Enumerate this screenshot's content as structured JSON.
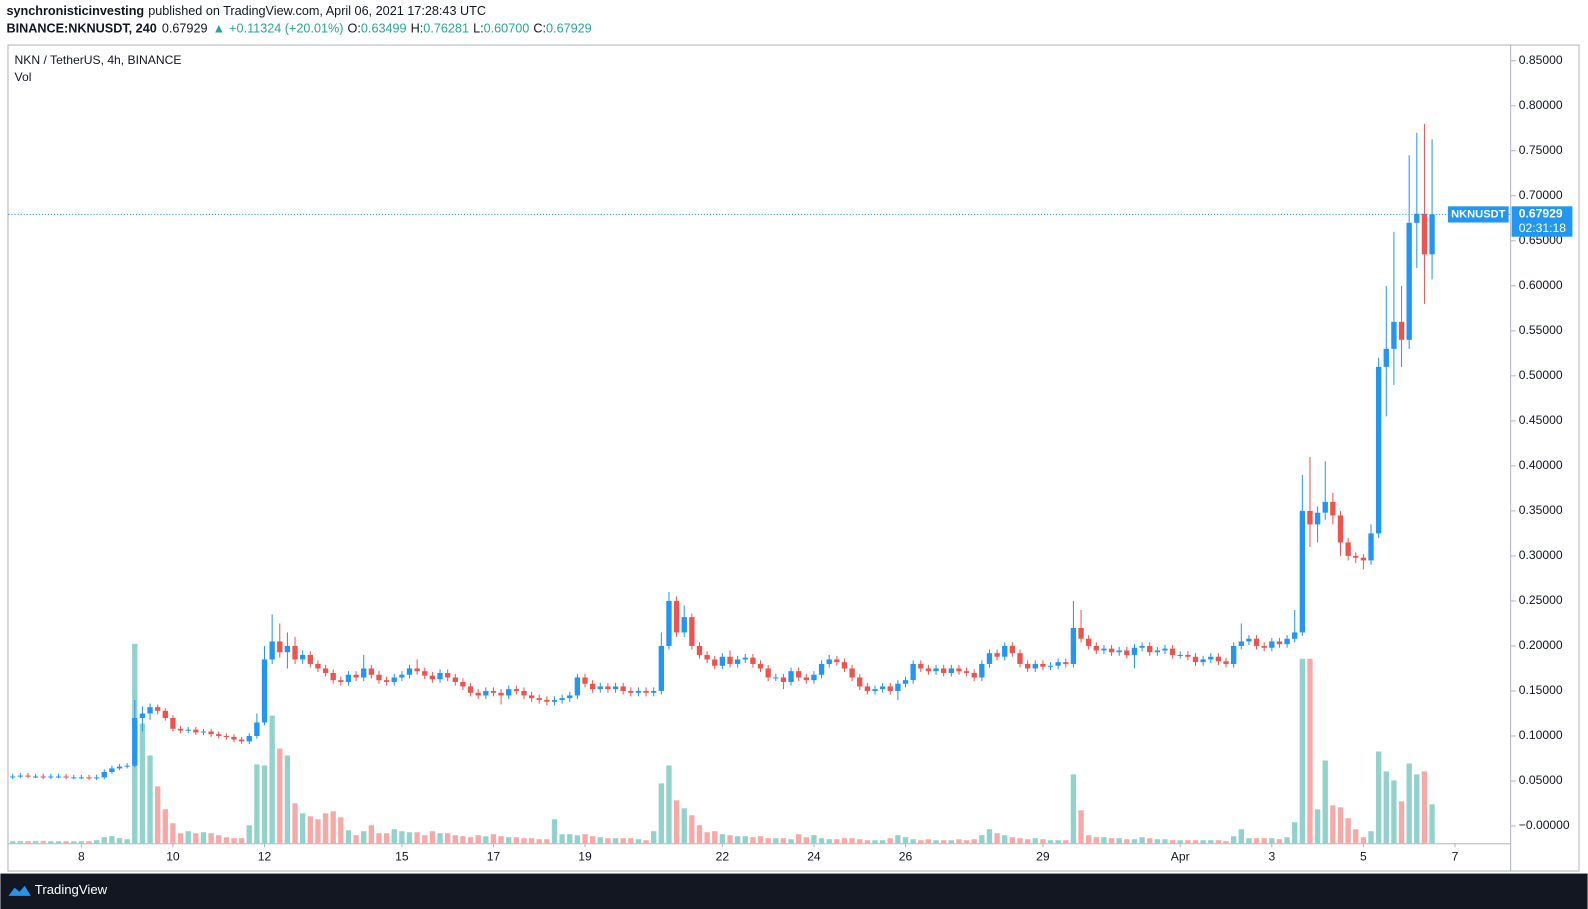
{
  "header": {
    "author": "synchronisticinvesting",
    "published": "published on TradingView.com, April 06, 2021 17:28:43 UTC",
    "symbol": "BINANCE:NKNUSDT, 240",
    "last": "0.67929",
    "arrow": "▲",
    "change": "+0.11324 (+20.01%)",
    "o_label": "O:",
    "o": "0.63499",
    "h_label": "H:",
    "h": "0.76281",
    "l_label": "L:",
    "l": "0.60700",
    "c_label": "C:",
    "c": "0.67929"
  },
  "footer": {
    "brand": "TradingView"
  },
  "chart_data": {
    "type": "candlestick",
    "title": "NKN / TetherUS, 4h, BINANCE",
    "volume_title": "Vol",
    "up_color": "#2196f3",
    "down_color": "#ef5350",
    "volume_up_color": "#92d2cc",
    "volume_down_color": "#f7a9a7",
    "xlim": [
      -0.55,
      196.3
    ],
    "xticks": [
      {
        "value": 9,
        "label": "8"
      },
      {
        "value": 21,
        "label": "10"
      },
      {
        "value": 33,
        "label": "12"
      },
      {
        "value": 51,
        "label": "15"
      },
      {
        "value": 63,
        "label": "17"
      },
      {
        "value": 75,
        "label": "19"
      },
      {
        "value": 93,
        "label": "22"
      },
      {
        "value": 105,
        "label": "24"
      },
      {
        "value": 117,
        "label": "26"
      },
      {
        "value": 135,
        "label": "29"
      },
      {
        "value": 153,
        "label": "Apr"
      },
      {
        "value": 165,
        "label": "3"
      },
      {
        "value": 177,
        "label": "5"
      },
      {
        "value": 189,
        "label": "7"
      }
    ],
    "ylim": [
      -0.0191,
      0.868
    ],
    "yticks": [
      {
        "value": 0,
        "label": "−0.00000"
      },
      {
        "value": 0.05,
        "label": "0.05000"
      },
      {
        "value": 0.1,
        "label": "0.10000"
      },
      {
        "value": 0.15,
        "label": "0.15000"
      },
      {
        "value": 0.2,
        "label": "0.20000"
      },
      {
        "value": 0.25,
        "label": "0.25000"
      },
      {
        "value": 0.3,
        "label": "0.30000"
      },
      {
        "value": 0.35,
        "label": "0.35000"
      },
      {
        "value": 0.4,
        "label": "0.40000"
      },
      {
        "value": 0.45,
        "label": "0.45000"
      },
      {
        "value": 0.5,
        "label": "0.50000"
      },
      {
        "value": 0.55,
        "label": "0.55000"
      },
      {
        "value": 0.6,
        "label": "0.60000"
      },
      {
        "value": 0.65,
        "label": "0.65000"
      },
      {
        "value": 0.7,
        "label": "0.70000"
      },
      {
        "value": 0.75,
        "label": "0.75000"
      },
      {
        "value": 0.8,
        "label": "0.80000"
      },
      {
        "value": 0.85,
        "label": "0.85000"
      }
    ],
    "price_line": {
      "name": "NKNUSDT",
      "value": 0.67929,
      "countdown": "02:31:18",
      "color": "#2196f3"
    },
    "open": [
      0.054,
      0.055,
      0.056,
      0.055,
      0.055,
      0.054,
      0.055,
      0.055,
      0.054,
      0.054,
      0.054,
      0.053,
      0.054,
      0.06,
      0.064,
      0.066,
      0.067,
      0.12,
      0.125,
      0.132,
      0.128,
      0.12,
      0.108,
      0.106,
      0.107,
      0.104,
      0.105,
      0.102,
      0.1,
      0.099,
      0.096,
      0.094,
      0.1,
      0.115,
      0.185,
      0.205,
      0.193,
      0.2,
      0.185,
      0.19,
      0.18,
      0.175,
      0.17,
      0.162,
      0.16,
      0.168,
      0.165,
      0.175,
      0.168,
      0.162,
      0.16,
      0.165,
      0.168,
      0.175,
      0.172,
      0.167,
      0.163,
      0.17,
      0.165,
      0.16,
      0.155,
      0.148,
      0.145,
      0.15,
      0.148,
      0.145,
      0.152,
      0.15,
      0.145,
      0.142,
      0.14,
      0.138,
      0.14,
      0.142,
      0.145,
      0.165,
      0.158,
      0.152,
      0.155,
      0.152,
      0.155,
      0.15,
      0.148,
      0.15,
      0.148,
      0.15,
      0.2,
      0.25,
      0.215,
      0.232,
      0.2,
      0.19,
      0.185,
      0.178,
      0.188,
      0.18,
      0.185,
      0.187,
      0.18,
      0.175,
      0.165,
      0.165,
      0.16,
      0.172,
      0.165,
      0.162,
      0.168,
      0.18,
      0.185,
      0.182,
      0.175,
      0.165,
      0.155,
      0.15,
      0.152,
      0.155,
      0.15,
      0.158,
      0.162,
      0.18,
      0.175,
      0.172,
      0.175,
      0.17,
      0.175,
      0.172,
      0.17,
      0.165,
      0.18,
      0.192,
      0.188,
      0.2,
      0.192,
      0.18,
      0.175,
      0.18,
      0.177,
      0.178,
      0.182,
      0.18,
      0.22,
      0.208,
      0.2,
      0.195,
      0.197,
      0.193,
      0.195,
      0.19,
      0.198,
      0.2,
      0.193,
      0.195,
      0.197,
      0.19,
      0.19,
      0.188,
      0.182,
      0.185,
      0.188,
      0.183,
      0.18,
      0.2,
      0.205,
      0.208,
      0.2,
      0.198,
      0.205,
      0.202,
      0.208,
      0.215,
      0.35,
      0.335,
      0.348,
      0.36,
      0.345,
      0.315,
      0.3,
      0.298,
      0.295,
      0.325,
      0.51,
      0.53,
      0.56,
      0.54,
      0.67,
      0.68,
      0.63499
    ],
    "high": [
      0.058,
      0.059,
      0.059,
      0.058,
      0.058,
      0.058,
      0.058,
      0.058,
      0.057,
      0.057,
      0.057,
      0.057,
      0.063,
      0.067,
      0.069,
      0.07,
      0.14,
      0.133,
      0.136,
      0.135,
      0.131,
      0.123,
      0.111,
      0.11,
      0.11,
      0.108,
      0.108,
      0.105,
      0.103,
      0.102,
      0.099,
      0.103,
      0.125,
      0.2,
      0.235,
      0.225,
      0.215,
      0.21,
      0.195,
      0.194,
      0.184,
      0.179,
      0.174,
      0.166,
      0.172,
      0.172,
      0.19,
      0.179,
      0.172,
      0.166,
      0.169,
      0.172,
      0.179,
      0.185,
      0.176,
      0.171,
      0.174,
      0.174,
      0.169,
      0.164,
      0.159,
      0.152,
      0.154,
      0.154,
      0.152,
      0.156,
      0.156,
      0.154,
      0.149,
      0.146,
      0.144,
      0.144,
      0.146,
      0.149,
      0.169,
      0.169,
      0.162,
      0.159,
      0.159,
      0.159,
      0.159,
      0.154,
      0.154,
      0.154,
      0.154,
      0.215,
      0.26,
      0.255,
      0.245,
      0.236,
      0.204,
      0.194,
      0.189,
      0.192,
      0.195,
      0.189,
      0.191,
      0.191,
      0.184,
      0.179,
      0.169,
      0.169,
      0.176,
      0.176,
      0.169,
      0.172,
      0.184,
      0.19,
      0.189,
      0.186,
      0.179,
      0.169,
      0.159,
      0.156,
      0.159,
      0.159,
      0.162,
      0.166,
      0.184,
      0.184,
      0.179,
      0.179,
      0.179,
      0.179,
      0.179,
      0.176,
      0.174,
      0.184,
      0.196,
      0.196,
      0.204,
      0.204,
      0.196,
      0.184,
      0.184,
      0.184,
      0.182,
      0.186,
      0.186,
      0.25,
      0.24,
      0.212,
      0.204,
      0.201,
      0.201,
      0.199,
      0.199,
      0.202,
      0.204,
      0.204,
      0.199,
      0.201,
      0.201,
      0.194,
      0.194,
      0.192,
      0.189,
      0.192,
      0.192,
      0.187,
      0.204,
      0.225,
      0.212,
      0.212,
      0.204,
      0.209,
      0.209,
      0.212,
      0.24,
      0.39,
      0.41,
      0.355,
      0.405,
      0.37,
      0.35,
      0.32,
      0.304,
      0.302,
      0.335,
      0.52,
      0.6,
      0.66,
      0.6,
      0.745,
      0.77,
      0.78,
      0.76281
    ],
    "low": [
      0.052,
      0.053,
      0.053,
      0.053,
      0.052,
      0.052,
      0.053,
      0.052,
      0.052,
      0.052,
      0.051,
      0.051,
      0.052,
      0.058,
      0.062,
      0.064,
      0.065,
      0.105,
      0.118,
      0.124,
      0.117,
      0.105,
      0.103,
      0.103,
      0.101,
      0.101,
      0.099,
      0.097,
      0.096,
      0.093,
      0.091,
      0.091,
      0.097,
      0.112,
      0.18,
      0.187,
      0.175,
      0.18,
      0.18,
      0.176,
      0.171,
      0.166,
      0.158,
      0.156,
      0.156,
      0.161,
      0.161,
      0.164,
      0.158,
      0.156,
      0.156,
      0.161,
      0.164,
      0.168,
      0.163,
      0.159,
      0.159,
      0.161,
      0.156,
      0.151,
      0.144,
      0.141,
      0.141,
      0.144,
      0.135,
      0.141,
      0.146,
      0.141,
      0.138,
      0.136,
      0.134,
      0.134,
      0.136,
      0.138,
      0.141,
      0.154,
      0.148,
      0.148,
      0.148,
      0.148,
      0.146,
      0.144,
      0.144,
      0.144,
      0.144,
      0.146,
      0.196,
      0.21,
      0.21,
      0.196,
      0.186,
      0.181,
      0.174,
      0.174,
      0.176,
      0.176,
      0.181,
      0.176,
      0.171,
      0.161,
      0.161,
      0.152,
      0.156,
      0.161,
      0.158,
      0.158,
      0.164,
      0.176,
      0.178,
      0.171,
      0.161,
      0.151,
      0.146,
      0.146,
      0.148,
      0.146,
      0.14,
      0.154,
      0.158,
      0.171,
      0.168,
      0.168,
      0.166,
      0.166,
      0.168,
      0.166,
      0.161,
      0.161,
      0.176,
      0.184,
      0.184,
      0.188,
      0.176,
      0.171,
      0.171,
      0.173,
      0.173,
      0.174,
      0.176,
      0.176,
      0.204,
      0.196,
      0.191,
      0.191,
      0.189,
      0.189,
      0.186,
      0.175,
      0.194,
      0.189,
      0.189,
      0.191,
      0.186,
      0.186,
      0.184,
      0.178,
      0.178,
      0.181,
      0.179,
      0.176,
      0.176,
      0.196,
      0.201,
      0.196,
      0.194,
      0.194,
      0.198,
      0.198,
      0.204,
      0.211,
      0.31,
      0.315,
      0.34,
      0.335,
      0.3,
      0.295,
      0.292,
      0.285,
      0.29,
      0.32,
      0.455,
      0.49,
      0.51,
      0.53,
      0.62,
      0.58,
      0.607
    ],
    "close": [
      0.055,
      0.056,
      0.055,
      0.055,
      0.054,
      0.055,
      0.055,
      0.054,
      0.054,
      0.054,
      0.053,
      0.054,
      0.06,
      0.064,
      0.066,
      0.067,
      0.12,
      0.125,
      0.132,
      0.128,
      0.12,
      0.108,
      0.106,
      0.107,
      0.104,
      0.105,
      0.102,
      0.1,
      0.099,
      0.096,
      0.094,
      0.1,
      0.115,
      0.185,
      0.205,
      0.193,
      0.2,
      0.185,
      0.19,
      0.18,
      0.175,
      0.17,
      0.162,
      0.16,
      0.168,
      0.165,
      0.175,
      0.168,
      0.162,
      0.16,
      0.165,
      0.168,
      0.175,
      0.172,
      0.167,
      0.163,
      0.17,
      0.165,
      0.16,
      0.155,
      0.148,
      0.145,
      0.15,
      0.148,
      0.145,
      0.152,
      0.15,
      0.145,
      0.142,
      0.14,
      0.138,
      0.14,
      0.142,
      0.145,
      0.165,
      0.158,
      0.152,
      0.155,
      0.152,
      0.155,
      0.15,
      0.148,
      0.15,
      0.148,
      0.15,
      0.2,
      0.25,
      0.215,
      0.232,
      0.2,
      0.19,
      0.185,
      0.178,
      0.188,
      0.18,
      0.185,
      0.187,
      0.18,
      0.175,
      0.165,
      0.165,
      0.16,
      0.172,
      0.165,
      0.162,
      0.168,
      0.18,
      0.185,
      0.182,
      0.175,
      0.165,
      0.155,
      0.15,
      0.152,
      0.155,
      0.15,
      0.158,
      0.162,
      0.18,
      0.175,
      0.172,
      0.175,
      0.17,
      0.175,
      0.172,
      0.17,
      0.165,
      0.18,
      0.192,
      0.188,
      0.2,
      0.192,
      0.18,
      0.175,
      0.18,
      0.177,
      0.178,
      0.182,
      0.18,
      0.22,
      0.208,
      0.2,
      0.195,
      0.197,
      0.193,
      0.195,
      0.19,
      0.198,
      0.2,
      0.193,
      0.195,
      0.197,
      0.19,
      0.19,
      0.188,
      0.182,
      0.185,
      0.188,
      0.183,
      0.18,
      0.2,
      0.205,
      0.208,
      0.2,
      0.198,
      0.205,
      0.202,
      0.208,
      0.215,
      0.35,
      0.335,
      0.348,
      0.36,
      0.345,
      0.315,
      0.3,
      0.298,
      0.295,
      0.325,
      0.51,
      0.53,
      0.56,
      0.54,
      0.67,
      0.68,
      0.63499,
      0.67929
    ],
    "volume": [
      0.2,
      0.2,
      0.2,
      0.2,
      0.2,
      0.2,
      0.2,
      0.2,
      0.2,
      0.2,
      0.2,
      0.3,
      0.6,
      0.7,
      0.5,
      0.4,
      20,
      12,
      8.8,
      5.7,
      3.4,
      2,
      1,
      1.2,
      1,
      1.1,
      1,
      0.8,
      0.6,
      0.5,
      0.5,
      1.8,
      7.9,
      7.8,
      12.8,
      9.5,
      8.8,
      4,
      3,
      2.7,
      2.4,
      3,
      3.2,
      2.6,
      1.3,
      0.8,
      1.2,
      1.8,
      1,
      1,
      1.4,
      1.2,
      1.1,
      1.1,
      0.8,
      1.2,
      1,
      1,
      0.8,
      0.7,
      0.6,
      0.8,
      0.7,
      0.9,
      0.7,
      0.6,
      0.6,
      0.5,
      0.5,
      0.4,
      0.4,
      2.4,
      0.9,
      0.9,
      0.8,
      0.9,
      0.7,
      0.6,
      0.5,
      0.5,
      0.5,
      0.5,
      0.4,
      0.3,
      1.2,
      6,
      7.8,
      4.3,
      3.5,
      2.8,
      1.8,
      1.1,
      1.2,
      0.9,
      0.8,
      0.7,
      0.7,
      0.6,
      0.7,
      0.5,
      0.5,
      0.5,
      0.4,
      0.9,
      0.6,
      0.8,
      0.5,
      0.4,
      0.4,
      0.5,
      0.5,
      0.4,
      0.3,
      0.3,
      0.3,
      0.5,
      0.8,
      0.6,
      0.4,
      0.3,
      0.4,
      0.3,
      0.3,
      0.3,
      0.4,
      0.3,
      0.4,
      0.8,
      1.4,
      1,
      0.8,
      0.6,
      0.5,
      0.4,
      0.5,
      0.4,
      0.3,
      0.3,
      0.3,
      6.9,
      3.3,
      0.8,
      0.6,
      0.6,
      0.5,
      0.5,
      0.4,
      0.4,
      0.6,
      0.5,
      0.4,
      0.4,
      0.3,
      0.3,
      0.3,
      0.3,
      0.3,
      0.3,
      0.3,
      0.2,
      0.7,
      1.4,
      0.5,
      0.5,
      0.5,
      0.5,
      0.4,
      0.6,
      2.1,
      18.5,
      18.5,
      3.4,
      8.3,
      3.8,
      3.6,
      2.5,
      1.4,
      0.6,
      1.2,
      9.2,
      7.2,
      6.3,
      4.2,
      8,
      6.9,
      7.2,
      3.9
    ]
  }
}
